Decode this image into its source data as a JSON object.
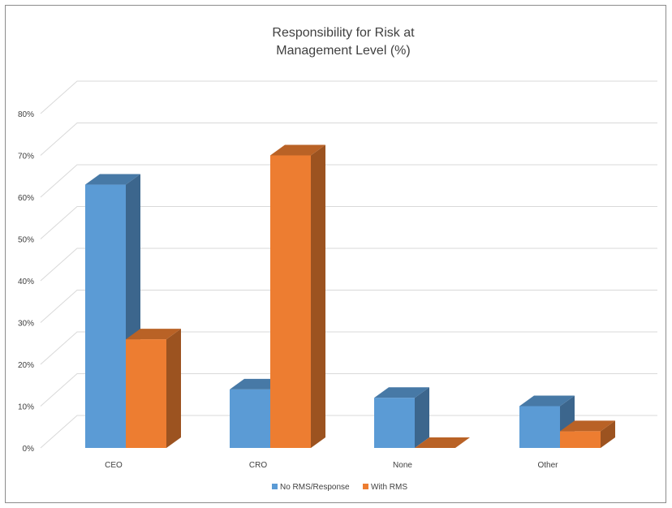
{
  "chart_data": {
    "type": "bar",
    "title": "Responsibility for Risk at Management Level (%)",
    "title_lines": [
      "Responsibility for Risk at",
      "Management Level (%)"
    ],
    "categories": [
      "CEO",
      "CRO",
      "None",
      "Other"
    ],
    "series": [
      {
        "name": "No RMS/Response",
        "values": [
          63,
          14,
          12,
          10
        ],
        "color": "#5B9BD5"
      },
      {
        "name": "With RMS",
        "values": [
          26,
          70,
          0,
          4
        ],
        "color": "#ED7D31"
      }
    ],
    "ylim": [
      0,
      80
    ],
    "yticks": [
      "0%",
      "10%",
      "20%",
      "30%",
      "40%",
      "50%",
      "60%",
      "70%",
      "80%"
    ],
    "grid": true,
    "legend_position": "bottom",
    "style": "3d-column"
  }
}
